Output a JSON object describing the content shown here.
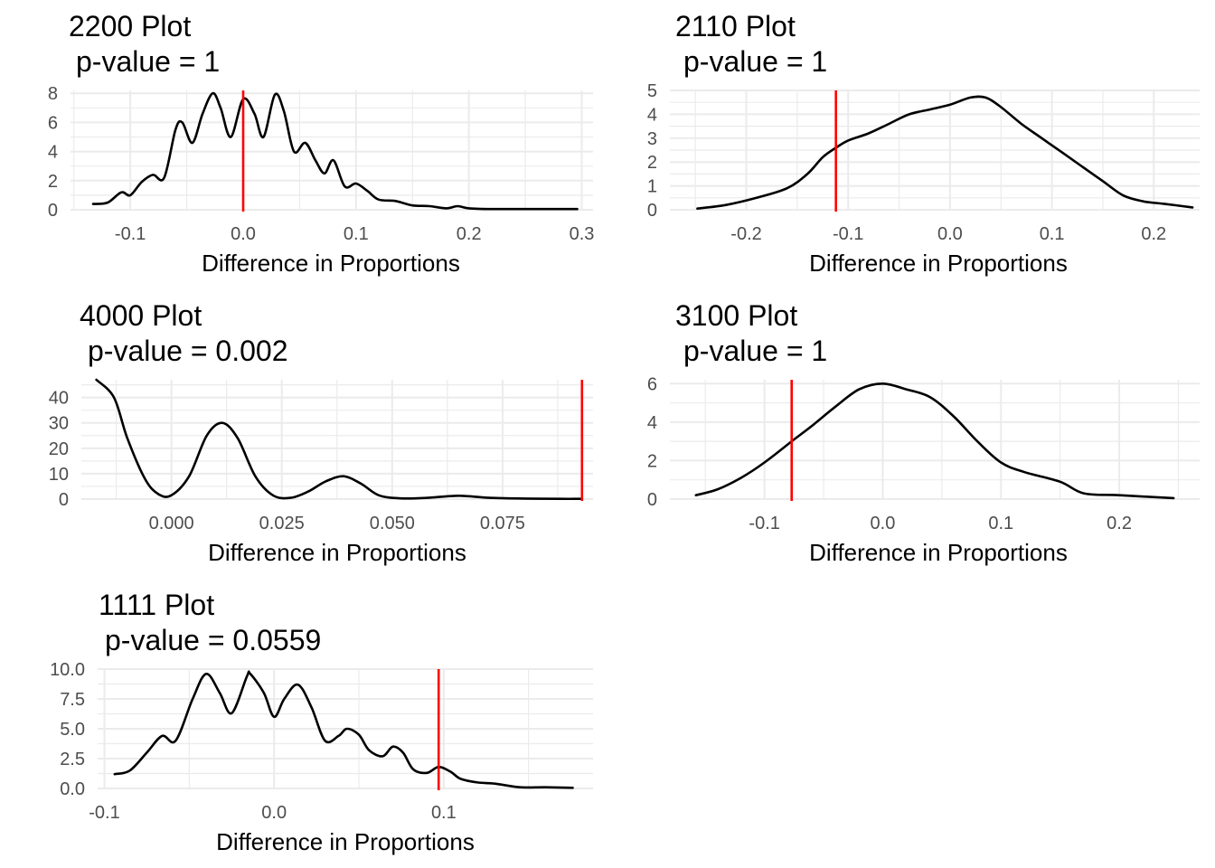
{
  "chart_data": [
    {
      "type": "line",
      "title": "2200 Plot",
      "subtitle": "p-value = 1",
      "xlabel": "Difference in Proportions",
      "ylabel": "",
      "xlim": [
        -0.153,
        0.31
      ],
      "ylim": [
        0,
        8.2
      ],
      "x_ticks": [
        -0.1,
        0.0,
        0.1,
        0.2,
        0.3
      ],
      "x_tick_labels": [
        "-0.1",
        "0.0",
        "0.1",
        "0.2",
        "0.3"
      ],
      "y_ticks": [
        0,
        2,
        4,
        6,
        8
      ],
      "y_tick_labels": [
        "0",
        "2",
        "4",
        "6",
        "8"
      ],
      "grid": true,
      "reference_line_x": 0.0,
      "reference_line_color": "#ff0000",
      "series": [
        {
          "x": [
            -0.133,
            -0.12,
            -0.108,
            -0.1,
            -0.09,
            -0.08,
            -0.07,
            -0.06,
            -0.054,
            -0.045,
            -0.036,
            -0.027,
            -0.02,
            -0.011,
            0.0,
            0.01,
            0.018,
            0.028,
            0.036,
            0.045,
            0.055,
            0.064,
            0.072,
            0.08,
            0.09,
            0.1,
            0.11,
            0.12,
            0.135,
            0.15,
            0.165,
            0.18,
            0.19,
            0.2,
            0.22,
            0.25,
            0.28,
            0.296
          ],
          "y": [
            0.4,
            0.5,
            1.2,
            1.0,
            1.9,
            2.4,
            2.2,
            5.5,
            6.0,
            4.6,
            6.6,
            8.0,
            7.0,
            5.0,
            7.6,
            6.6,
            5.0,
            7.9,
            6.8,
            4.0,
            4.6,
            3.4,
            2.5,
            3.4,
            1.6,
            1.8,
            1.3,
            0.7,
            0.6,
            0.3,
            0.25,
            0.1,
            0.25,
            0.1,
            0.05,
            0.05,
            0.05,
            0.05
          ]
        }
      ]
    },
    {
      "type": "line",
      "title": "2110 Plot",
      "subtitle": "p-value = 1",
      "xlabel": "Difference in Proportions",
      "ylabel": "",
      "xlim": [
        -0.275,
        0.245
      ],
      "ylim": [
        0,
        5
      ],
      "x_ticks": [
        -0.2,
        -0.1,
        0.0,
        0.1,
        0.2
      ],
      "x_tick_labels": [
        "-0.2",
        "-0.1",
        "0.0",
        "0.1",
        "0.2"
      ],
      "y_ticks": [
        0,
        1,
        2,
        3,
        4,
        5
      ],
      "y_tick_labels": [
        "0",
        "1",
        "2",
        "3",
        "4",
        "5"
      ],
      "grid": true,
      "reference_line_x": -0.112,
      "reference_line_color": "#ff0000",
      "series": [
        {
          "x": [
            -0.248,
            -0.22,
            -0.19,
            -0.16,
            -0.14,
            -0.125,
            -0.112,
            -0.1,
            -0.08,
            -0.06,
            -0.04,
            -0.02,
            0.0,
            0.02,
            0.035,
            0.05,
            0.07,
            0.09,
            0.11,
            0.13,
            0.15,
            0.17,
            0.19,
            0.21,
            0.238
          ],
          "y": [
            0.05,
            0.2,
            0.5,
            0.9,
            1.5,
            2.2,
            2.6,
            2.9,
            3.2,
            3.6,
            4.0,
            4.2,
            4.4,
            4.7,
            4.7,
            4.3,
            3.6,
            3.0,
            2.4,
            1.8,
            1.2,
            0.6,
            0.35,
            0.25,
            0.1
          ]
        }
      ]
    },
    {
      "type": "line",
      "title": "4000 Plot",
      "subtitle": "p-value = 0.002",
      "xlabel": "Difference in Proportions",
      "ylabel": "",
      "xlim": [
        -0.0204,
        0.0955
      ],
      "ylim": [
        0,
        47
      ],
      "x_ticks": [
        0.0,
        0.025,
        0.05,
        0.075
      ],
      "x_tick_labels": [
        "0.000",
        "0.025",
        "0.050",
        "0.075"
      ],
      "y_ticks": [
        0,
        10,
        20,
        30,
        40
      ],
      "y_tick_labels": [
        "0",
        "10",
        "20",
        "30",
        "40"
      ],
      "grid": true,
      "reference_line_x": 0.093,
      "reference_line_color": "#ff0000",
      "series": [
        {
          "x": [
            -0.017,
            -0.013,
            -0.01,
            -0.006,
            -0.003,
            0.0,
            0.004,
            0.008,
            0.0115,
            0.015,
            0.019,
            0.023,
            0.027,
            0.031,
            0.035,
            0.039,
            0.043,
            0.047,
            0.052,
            0.058,
            0.065,
            0.072,
            0.08,
            0.088,
            0.093
          ],
          "y": [
            47,
            40,
            24,
            8,
            2,
            1.5,
            9,
            25,
            30,
            24,
            9,
            1.5,
            0.5,
            3,
            7,
            9,
            6,
            1.5,
            0.3,
            0.5,
            1.3,
            0.5,
            0.2,
            0.1,
            0.1
          ]
        }
      ]
    },
    {
      "type": "line",
      "title": "3100 Plot",
      "subtitle": "p-value = 1",
      "xlabel": "Difference in Proportions",
      "ylabel": "",
      "xlim": [
        -0.18,
        0.268
      ],
      "ylim": [
        0,
        6.2
      ],
      "x_ticks": [
        -0.1,
        0.0,
        0.1,
        0.2
      ],
      "x_tick_labels": [
        "-0.1",
        "0.0",
        "0.1",
        "0.2"
      ],
      "y_ticks": [
        0,
        2,
        4,
        6
      ],
      "y_tick_labels": [
        "0",
        "2",
        "4",
        "6"
      ],
      "grid": true,
      "reference_line_x": -0.077,
      "reference_line_color": "#ff0000",
      "series": [
        {
          "x": [
            -0.158,
            -0.14,
            -0.12,
            -0.1,
            -0.077,
            -0.06,
            -0.04,
            -0.02,
            0.0,
            0.02,
            0.04,
            0.06,
            0.08,
            0.1,
            0.12,
            0.15,
            0.17,
            0.2,
            0.246
          ],
          "y": [
            0.2,
            0.5,
            1.1,
            1.9,
            3.0,
            3.8,
            4.8,
            5.7,
            6.0,
            5.7,
            5.3,
            4.3,
            3.0,
            1.9,
            1.4,
            0.9,
            0.3,
            0.2,
            0.05
          ]
        }
      ]
    },
    {
      "type": "line",
      "title": "1111 Plot",
      "subtitle": "p-value = 0.0559",
      "xlabel": "Difference in Proportions",
      "ylabel": "",
      "xlim": [
        -0.104,
        0.188
      ],
      "ylim": [
        0,
        10
      ],
      "x_ticks": [
        -0.1,
        0.0,
        0.1
      ],
      "x_tick_labels": [
        "-0.1",
        "0.0",
        "0.1"
      ],
      "y_ticks": [
        0,
        2.5,
        5.0,
        7.5,
        10.0
      ],
      "y_tick_labels": [
        "0.0",
        "2.5",
        "5.0",
        "7.5",
        "10.0"
      ],
      "grid": true,
      "reference_line_x": 0.097,
      "reference_line_color": "#ff0000",
      "series": [
        {
          "x": [
            -0.094,
            -0.085,
            -0.075,
            -0.066,
            -0.058,
            -0.048,
            -0.04,
            -0.032,
            -0.025,
            -0.016,
            -0.014,
            -0.006,
            0.0,
            0.006,
            0.014,
            0.022,
            0.03,
            0.038,
            0.043,
            0.05,
            0.056,
            0.064,
            0.07,
            0.076,
            0.082,
            0.09,
            0.097,
            0.104,
            0.11,
            0.12,
            0.13,
            0.145,
            0.16,
            0.176
          ],
          "y": [
            1.2,
            1.5,
            3.0,
            4.4,
            4.0,
            7.5,
            9.6,
            8.0,
            6.3,
            9.4,
            9.6,
            8.0,
            6.0,
            7.5,
            8.7,
            6.8,
            4.0,
            4.4,
            5.0,
            4.5,
            3.2,
            2.7,
            3.5,
            3.0,
            1.6,
            1.3,
            1.8,
            1.4,
            0.8,
            0.5,
            0.4,
            0.1,
            0.1,
            0.05
          ]
        }
      ]
    }
  ]
}
